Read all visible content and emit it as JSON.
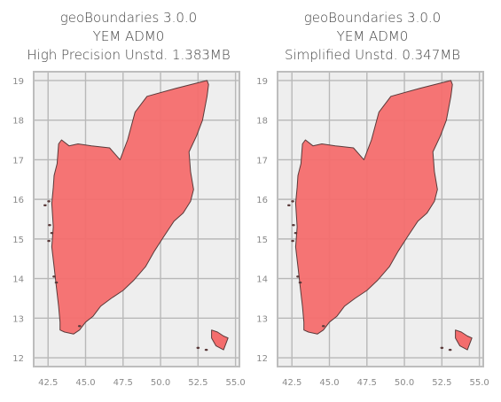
{
  "panels": [
    {
      "title_lines": [
        "geoBoundaries 3.0.0",
        "YEM ADM0",
        "High Precision Unstd. 1.383MB"
      ],
      "xlim": [
        41.6,
        55.2
      ],
      "ylim": [
        11.8,
        19.2
      ],
      "xticks": [
        "42.5",
        "45.0",
        "47.5",
        "50.0",
        "52.5",
        "55.0"
      ],
      "yticks": [
        "12",
        "13",
        "14",
        "15",
        "16",
        "17",
        "18",
        "19"
      ]
    },
    {
      "title_lines": [
        "geoBoundaries 3.0.0",
        "YEM ADM0",
        "Simplified Unstd. 0.347MB"
      ],
      "xlim": [
        41.6,
        55.2
      ],
      "ylim": [
        11.8,
        19.2
      ],
      "xticks": [
        "42.5",
        "45.0",
        "47.5",
        "50.0",
        "52.5",
        "55.0"
      ],
      "yticks": [
        "12",
        "13",
        "14",
        "15",
        "16",
        "17",
        "18",
        "19"
      ]
    }
  ],
  "colors": {
    "fill": "#f46d6d",
    "edge": "#5a3a3a",
    "plot_bg": "#eeeeee",
    "grid": "#b8b8b8",
    "frame": "#bdbdbd"
  },
  "shape": {
    "mainland": [
      [
        43.3,
        12.7
      ],
      [
        43.6,
        12.65
      ],
      [
        44.2,
        12.6
      ],
      [
        44.6,
        12.7
      ],
      [
        45.0,
        12.9
      ],
      [
        45.5,
        13.05
      ],
      [
        46.0,
        13.3
      ],
      [
        46.7,
        13.5
      ],
      [
        47.5,
        13.7
      ],
      [
        48.2,
        13.95
      ],
      [
        49.0,
        14.3
      ],
      [
        49.6,
        14.7
      ],
      [
        50.2,
        15.05
      ],
      [
        50.9,
        15.45
      ],
      [
        51.5,
        15.65
      ],
      [
        52.0,
        15.95
      ],
      [
        52.2,
        16.25
      ],
      [
        52.0,
        16.7
      ],
      [
        51.9,
        17.2
      ],
      [
        52.4,
        17.6
      ],
      [
        52.8,
        18.0
      ],
      [
        53.1,
        18.6
      ],
      [
        53.2,
        18.9
      ],
      [
        53.1,
        19.0
      ],
      [
        51.0,
        18.8
      ],
      [
        49.1,
        18.6
      ],
      [
        48.3,
        18.2
      ],
      [
        47.8,
        17.5
      ],
      [
        47.3,
        17.0
      ],
      [
        46.6,
        17.3
      ],
      [
        45.4,
        17.35
      ],
      [
        44.5,
        17.4
      ],
      [
        43.9,
        17.35
      ],
      [
        43.4,
        17.5
      ],
      [
        43.2,
        17.4
      ],
      [
        43.1,
        16.9
      ],
      [
        42.9,
        16.6
      ],
      [
        42.85,
        16.3
      ],
      [
        42.75,
        15.9
      ],
      [
        42.85,
        15.3
      ],
      [
        42.75,
        14.8
      ],
      [
        42.9,
        14.3
      ],
      [
        43.05,
        13.8
      ],
      [
        43.2,
        13.3
      ],
      [
        43.3,
        12.9
      ]
    ],
    "socotra": [
      [
        53.4,
        12.7
      ],
      [
        53.8,
        12.65
      ],
      [
        54.2,
        12.55
      ],
      [
        54.5,
        12.5
      ],
      [
        54.2,
        12.2
      ],
      [
        53.7,
        12.3
      ],
      [
        53.4,
        12.5
      ]
    ],
    "islets": [
      [
        42.3,
        15.85
      ],
      [
        42.55,
        15.95
      ],
      [
        42.6,
        15.35
      ],
      [
        42.75,
        15.15
      ],
      [
        42.55,
        14.95
      ],
      [
        42.9,
        14.05
      ],
      [
        43.05,
        13.9
      ],
      [
        44.6,
        12.8
      ],
      [
        53.05,
        12.2
      ],
      [
        52.5,
        12.25
      ]
    ]
  }
}
